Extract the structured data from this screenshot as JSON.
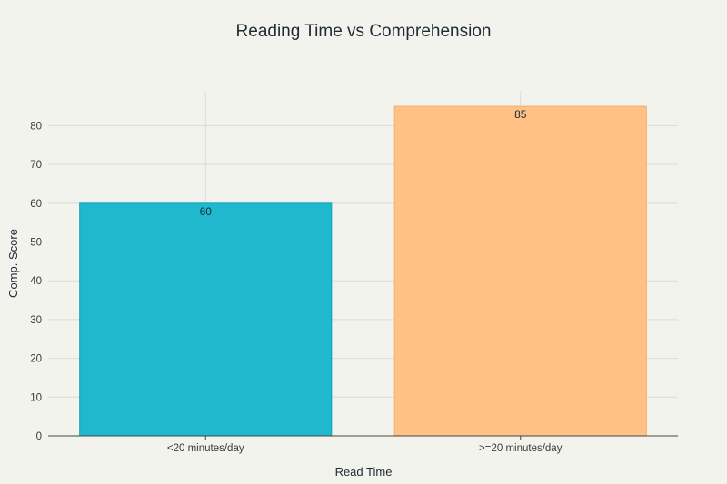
{
  "chart_data": {
    "type": "bar",
    "title": "Reading Time vs Comprehension",
    "xlabel": "Read Time",
    "ylabel": "Comp. Score",
    "categories": [
      "<20 minutes/day",
      ">=20 minutes/day"
    ],
    "values": [
      60,
      85
    ],
    "data_labels": [
      "60",
      "85"
    ],
    "colors": [
      "#1fb8cd",
      "#ffc185"
    ],
    "edge_colors": [
      "#1aa3b6",
      "#f2b070"
    ],
    "ylim": [
      0,
      89
    ],
    "yticks": [
      0,
      10,
      20,
      30,
      40,
      50,
      60,
      70,
      80
    ],
    "ytick_labels": [
      "0",
      "10",
      "20",
      "30",
      "40",
      "50",
      "60",
      "70",
      "80"
    ],
    "grid": true,
    "legend": "none"
  }
}
